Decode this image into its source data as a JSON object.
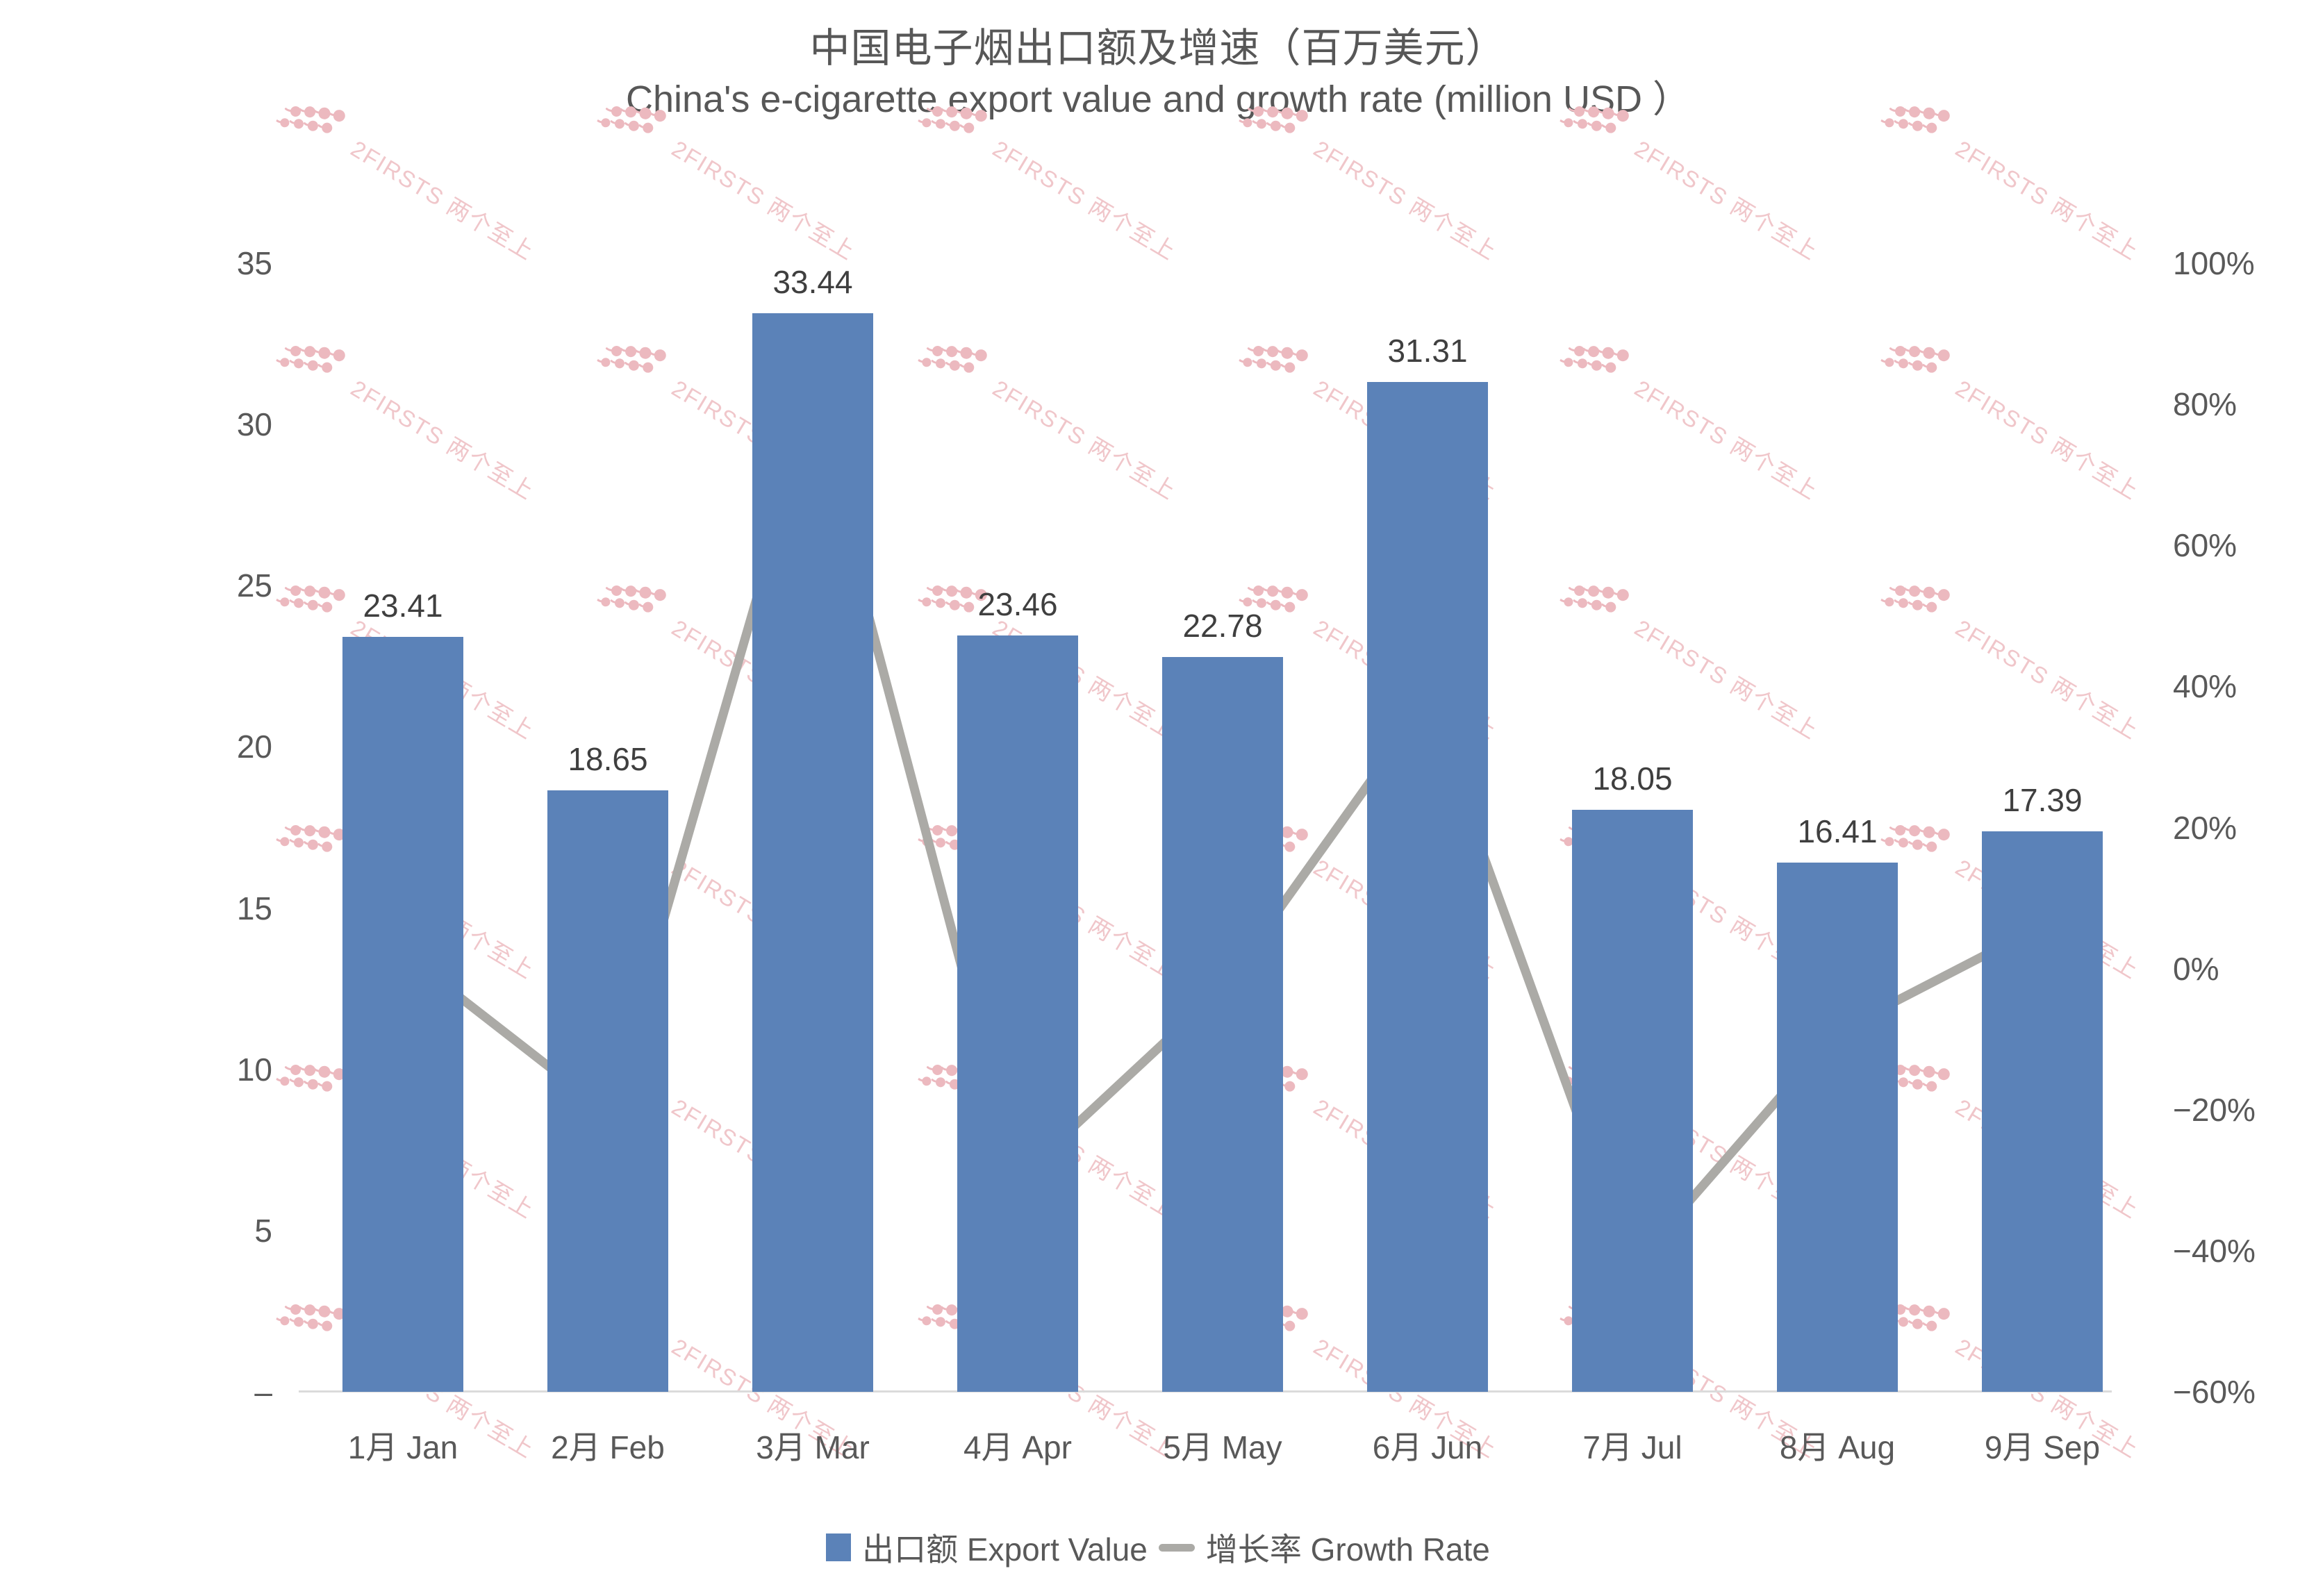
{
  "title": "中国电子烟出口额及增速（百万美元）",
  "subtitle": "China's e-cigarette export value and growth rate (million USD ）",
  "legend": {
    "export_label": "出口额 Export Value",
    "growth_label": "增长率 Growth Rate"
  },
  "watermark": {
    "text": "2FIRSTS 两个至上",
    "text_color": "#f0c6ca",
    "logo_color": "#ecb9bf"
  },
  "colors": {
    "bar": "#5b82b8",
    "line": "#abaaa6",
    "axis_text": "#595959",
    "value_label": "#3f3f3f",
    "baseline": "#dbdbdb",
    "title_text": "#575757"
  },
  "chart_data": {
    "type": "bar+line",
    "categories": [
      "1月 Jan",
      "2月 Feb",
      "3月 Mar",
      "4月 Apr",
      "5月 May",
      "6月 Jun",
      "7月 Jul",
      "8月 Aug",
      "9月 Sep"
    ],
    "series": [
      {
        "name": "出口额 Export Value",
        "type": "bar",
        "axis": "left",
        "values": [
          23.41,
          18.65,
          33.44,
          23.46,
          22.78,
          31.31,
          18.05,
          16.41,
          17.39
        ]
      },
      {
        "name": "增长率 Growth Rate",
        "type": "line",
        "axis": "right",
        "values_pct": [
          2.2,
          -20.4,
          79.9,
          -29.8,
          -2.8,
          37.9,
          -42.2,
          -8.9,
          6.1
        ]
      }
    ],
    "left_axis": {
      "range": [
        0,
        35
      ],
      "tick_values": [
        35,
        30,
        25,
        20,
        15,
        10,
        5,
        0
      ],
      "tick_labels": [
        "35",
        "30",
        "25",
        "20",
        "15",
        "10",
        "5",
        "–"
      ]
    },
    "right_axis": {
      "range_pct": [
        -60,
        100
      ],
      "tick_values": [
        100,
        80,
        60,
        40,
        20,
        0,
        -20,
        -40,
        -60
      ],
      "tick_labels": [
        "100%",
        "80%",
        "60%",
        "40%",
        "20%",
        "0%",
        "−20%",
        "−40%",
        "−60%"
      ]
    },
    "grid": false,
    "data_labels_on_bars": true,
    "legend_position": "bottom"
  }
}
